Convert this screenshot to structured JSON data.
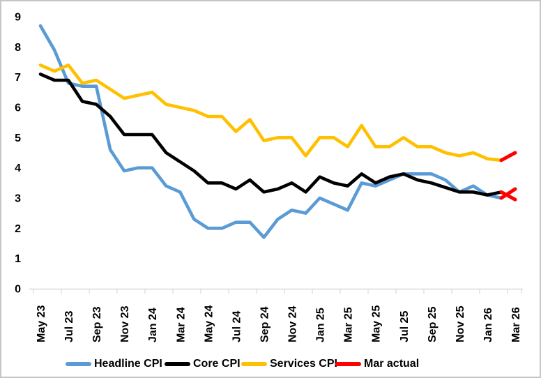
{
  "chart_data": {
    "type": "line",
    "title": "",
    "xlabel": "",
    "ylabel": "",
    "ylim": [
      0,
      9
    ],
    "y_ticks": [
      0,
      1,
      2,
      3,
      4,
      5,
      6,
      7,
      8,
      9
    ],
    "grid": false,
    "legend_position": "bottom",
    "x_tick_interval": 2,
    "categories": [
      "May 23",
      "Jun 23",
      "Jul 23",
      "Aug 23",
      "Sep 23",
      "Oct 23",
      "Nov 23",
      "Dec 23",
      "Jan 24",
      "Feb 24",
      "Mar 24",
      "Apr 24",
      "May 24",
      "Jun 24",
      "Jul 24",
      "Aug 24",
      "Sep 24",
      "Oct 24",
      "Nov 24",
      "Dec 24",
      "Jan 25",
      "Feb 25",
      "Mar 25",
      "Apr 25",
      "May 25",
      "Jun 25",
      "Jul 25",
      "Aug 25",
      "Sep 25",
      "Oct 25",
      "Nov 25",
      "Dec 25",
      "Jan 26",
      "Feb 26",
      "Mar 26"
    ],
    "visible_x_labels": [
      "May 23",
      "Jul 23",
      "Sep 23",
      "Nov 23",
      "Jan 24",
      "Mar 24",
      "May 24",
      "Jul 24",
      "Sep 24",
      "Nov 24",
      "Jan 25",
      "Mar 25",
      "May 25",
      "Jul 25",
      "Sep 25",
      "Nov 25",
      "Jan 26",
      "Mar 26"
    ],
    "series": [
      {
        "name": "Headline CPI",
        "color": "#5B9BD5",
        "values": [
          8.7,
          7.9,
          6.8,
          6.7,
          6.7,
          4.6,
          3.9,
          4.0,
          4.0,
          3.4,
          3.2,
          2.3,
          2.0,
          2.0,
          2.2,
          2.2,
          1.7,
          2.3,
          2.6,
          2.5,
          3.0,
          2.8,
          2.6,
          3.5,
          3.4,
          3.6,
          3.8,
          3.8,
          3.8,
          3.6,
          3.2,
          3.4,
          3.1,
          3.0,
          null
        ]
      },
      {
        "name": "Core CPI",
        "color": "#000000",
        "values": [
          7.1,
          6.9,
          6.9,
          6.2,
          6.1,
          5.7,
          5.1,
          5.1,
          5.1,
          4.5,
          4.2,
          3.9,
          3.5,
          3.5,
          3.3,
          3.6,
          3.2,
          3.3,
          3.5,
          3.2,
          3.7,
          3.5,
          3.4,
          3.8,
          3.5,
          3.7,
          3.8,
          3.6,
          3.5,
          3.35,
          3.2,
          3.2,
          3.1,
          3.2,
          null
        ]
      },
      {
        "name": "Services CPI",
        "color": "#FFC000",
        "values": [
          7.4,
          7.2,
          7.4,
          6.8,
          6.9,
          6.6,
          6.3,
          6.4,
          6.5,
          6.1,
          6.0,
          5.9,
          5.7,
          5.7,
          5.2,
          5.6,
          4.9,
          5.0,
          5.0,
          4.4,
          5.0,
          5.0,
          4.7,
          5.4,
          4.7,
          4.7,
          5.0,
          4.7,
          4.7,
          4.5,
          4.4,
          4.5,
          4.3,
          4.25,
          null
        ]
      }
    ],
    "mar_actual_segments": [
      {
        "name": "Mar actual (services)",
        "color": "#FF0000",
        "points": [
          {
            "i": 33,
            "v": 4.25
          },
          {
            "i": 34,
            "v": 4.5
          }
        ]
      },
      {
        "name": "Mar actual (headline)",
        "color": "#FF0000",
        "points": [
          {
            "i": 33,
            "v": 3.0
          },
          {
            "i": 34,
            "v": 3.3
          }
        ]
      },
      {
        "name": "Mar actual (core)",
        "color": "#FF0000",
        "points": [
          {
            "i": 33,
            "v": 3.2
          },
          {
            "i": 34,
            "v": 2.95
          }
        ]
      }
    ],
    "axis_color": "#D9D9D9",
    "text_color": "#000000"
  },
  "legend": {
    "items": [
      {
        "label": "Headline CPI",
        "color": "#5B9BD5"
      },
      {
        "label": "Core CPI",
        "color": "#000000"
      },
      {
        "label": "Services CPI",
        "color": "#FFC000"
      },
      {
        "label": "Mar actual",
        "color": "#FF0000"
      }
    ]
  }
}
